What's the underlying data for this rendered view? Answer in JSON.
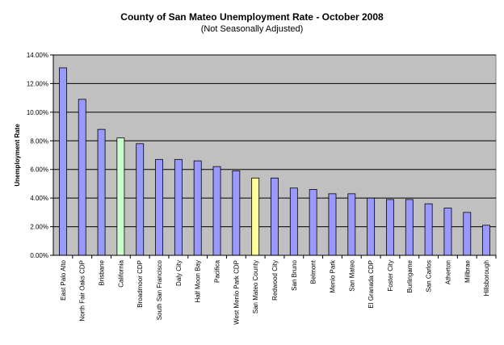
{
  "chart_data": {
    "type": "bar",
    "title": "County of San Mateo Unemployment Rate - October 2008",
    "subtitle": "(Not Seasonally Adjusted)",
    "xlabel": "",
    "ylabel": "Unemployment Rate",
    "ylim": [
      0,
      14
    ],
    "y_ticks": [
      "0.00%",
      "2.00%",
      "4.00%",
      "6.00%",
      "8.00%",
      "10.00%",
      "12.00%",
      "14.00%"
    ],
    "grid": true,
    "legend": "none",
    "categories": [
      "East Palo Alto",
      "North Fair Oaks CDP",
      "Brisbane",
      "California",
      "Broadmoor CDP",
      "South San Francisco",
      "Daly City",
      "Half Moon Bay",
      "Pacifica",
      "West Menlo Park CDP",
      "San Mateo County",
      "Redwood City",
      "San Bruno",
      "Belmont",
      "Menlo Park",
      "San Mateo",
      "El Granada CDP",
      "Foster City",
      "Burlingame",
      "San Carlos",
      "Atherton",
      "Millbrae",
      "Hillsborough"
    ],
    "values": [
      13.1,
      10.9,
      8.8,
      8.2,
      7.8,
      6.7,
      6.7,
      6.6,
      6.2,
      5.9,
      5.4,
      5.4,
      4.7,
      4.6,
      4.3,
      4.3,
      4.0,
      3.9,
      3.9,
      3.6,
      3.3,
      3.0,
      2.1
    ],
    "colors": {
      "default": "#9999ff",
      "California": "#ccffcc",
      "San Mateo County": "#ffff99",
      "plot_background": "#c0c0c0"
    }
  }
}
